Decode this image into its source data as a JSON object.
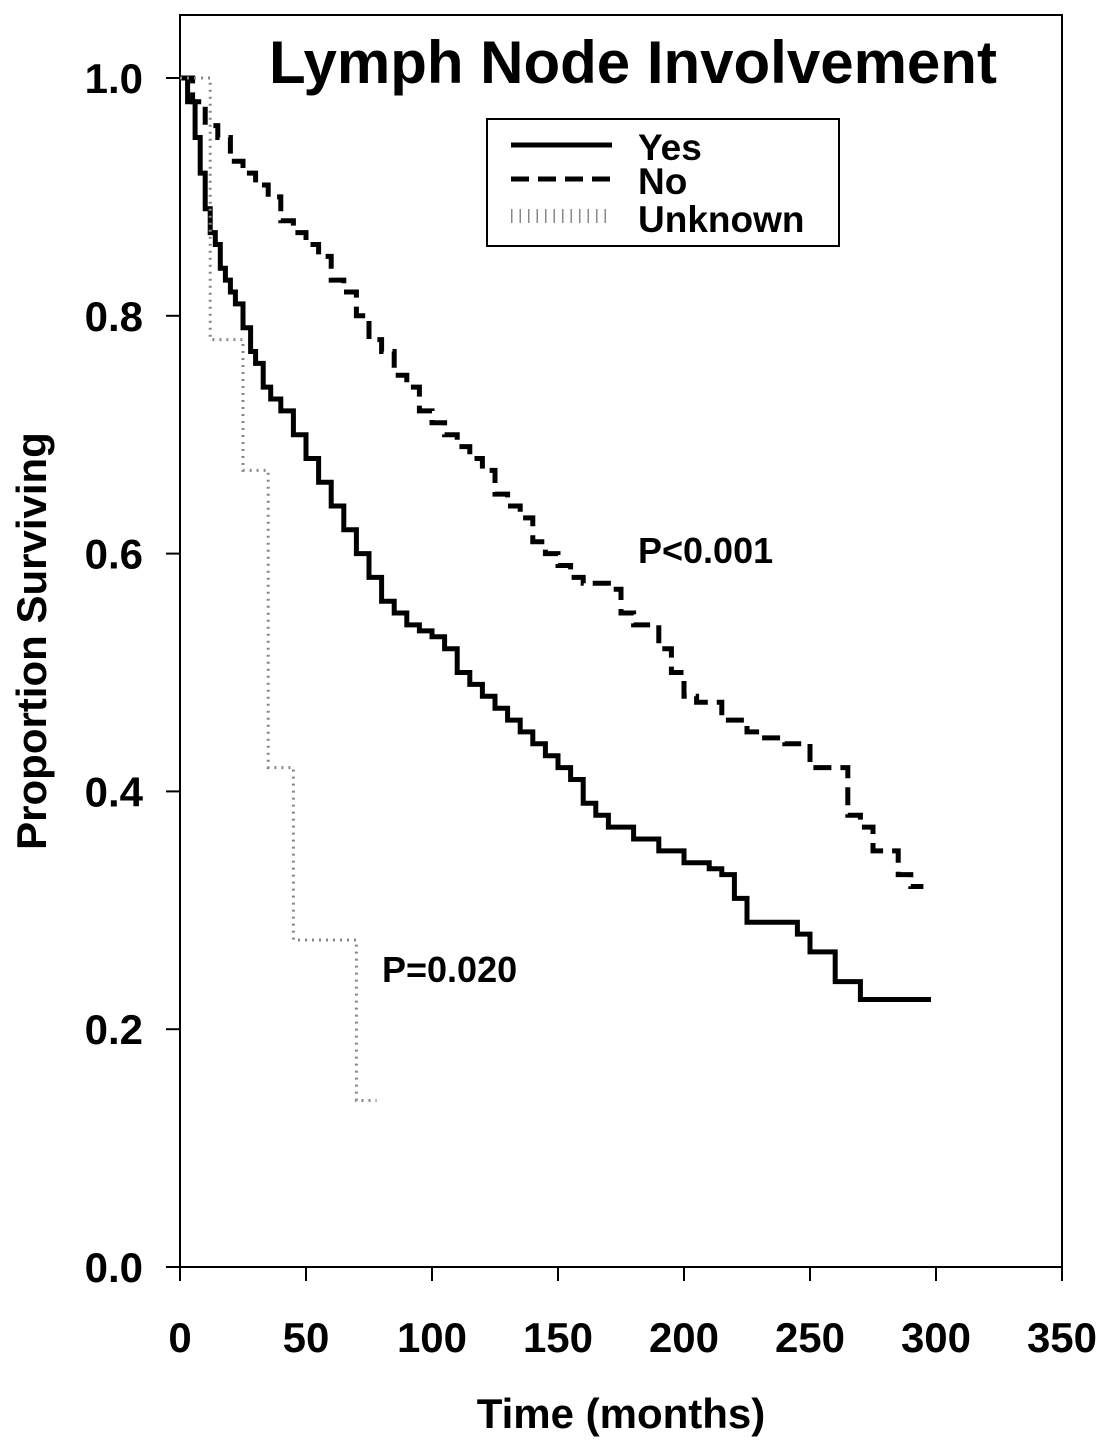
{
  "chart_data": {
    "type": "line",
    "subtype": "kaplan-meier step curve",
    "title": "Lymph Node Involvement",
    "xlabel": "Time (months)",
    "ylabel": "Proportion Surviving",
    "xlim": [
      0,
      350
    ],
    "ylim": [
      0.0,
      1.0
    ],
    "x_ticks": [
      "0",
      "50",
      "100",
      "150",
      "200",
      "250",
      "300",
      "350"
    ],
    "y_ticks": [
      "0.0",
      "0.2",
      "0.4",
      "0.6",
      "0.8",
      "1.0"
    ],
    "grid": false,
    "legend_position": "top-right",
    "legend": [
      "Yes",
      "No",
      "Unknown"
    ],
    "series": [
      {
        "name": "Yes",
        "line_style": "solid",
        "color": "#000000",
        "x": [
          0,
          3,
          6,
          8,
          10,
          12,
          14,
          16,
          18,
          20,
          22,
          25,
          28,
          30,
          33,
          36,
          40,
          45,
          50,
          55,
          60,
          65,
          70,
          75,
          80,
          85,
          90,
          95,
          100,
          105,
          110,
          115,
          120,
          125,
          130,
          135,
          140,
          145,
          150,
          155,
          160,
          165,
          170,
          175,
          180,
          185,
          190,
          195,
          200,
          205,
          210,
          215,
          220,
          225,
          230,
          235,
          240,
          245,
          250,
          255,
          260,
          265,
          270,
          275,
          280,
          285,
          290,
          298
        ],
        "y": [
          1.0,
          0.98,
          0.95,
          0.92,
          0.89,
          0.87,
          0.86,
          0.84,
          0.83,
          0.82,
          0.81,
          0.79,
          0.77,
          0.76,
          0.74,
          0.73,
          0.72,
          0.7,
          0.68,
          0.66,
          0.64,
          0.62,
          0.6,
          0.58,
          0.56,
          0.55,
          0.54,
          0.535,
          0.53,
          0.52,
          0.5,
          0.49,
          0.48,
          0.47,
          0.46,
          0.45,
          0.44,
          0.43,
          0.42,
          0.41,
          0.39,
          0.38,
          0.37,
          0.37,
          0.36,
          0.36,
          0.35,
          0.35,
          0.34,
          0.34,
          0.335,
          0.33,
          0.31,
          0.29,
          0.29,
          0.29,
          0.29,
          0.28,
          0.265,
          0.265,
          0.24,
          0.24,
          0.225,
          0.225,
          0.225,
          0.225,
          0.225,
          0.225
        ]
      },
      {
        "name": "No",
        "line_style": "dashed",
        "color": "#000000",
        "x": [
          0,
          5,
          10,
          15,
          20,
          25,
          30,
          35,
          40,
          45,
          50,
          55,
          60,
          65,
          70,
          75,
          80,
          85,
          90,
          95,
          100,
          105,
          110,
          115,
          120,
          125,
          130,
          135,
          140,
          145,
          150,
          155,
          160,
          165,
          170,
          175,
          180,
          185,
          190,
          195,
          200,
          205,
          210,
          215,
          220,
          225,
          230,
          235,
          240,
          245,
          250,
          255,
          260,
          265,
          270,
          275,
          280,
          285,
          290,
          295
        ],
        "y": [
          1.0,
          0.98,
          0.96,
          0.95,
          0.93,
          0.92,
          0.91,
          0.9,
          0.88,
          0.87,
          0.86,
          0.85,
          0.83,
          0.82,
          0.8,
          0.78,
          0.77,
          0.75,
          0.74,
          0.72,
          0.71,
          0.7,
          0.69,
          0.68,
          0.67,
          0.65,
          0.64,
          0.63,
          0.61,
          0.6,
          0.59,
          0.58,
          0.575,
          0.575,
          0.57,
          0.55,
          0.54,
          0.54,
          0.52,
          0.5,
          0.48,
          0.475,
          0.475,
          0.46,
          0.46,
          0.45,
          0.445,
          0.445,
          0.44,
          0.44,
          0.42,
          0.42,
          0.42,
          0.38,
          0.37,
          0.35,
          0.35,
          0.33,
          0.32,
          0.32
        ]
      },
      {
        "name": "Unknown",
        "line_style": "dotted",
        "color": "#888888",
        "x": [
          0,
          5,
          12,
          25,
          35,
          45,
          70,
          78
        ],
        "y": [
          1.0,
          1.0,
          0.78,
          0.67,
          0.42,
          0.275,
          0.14,
          0.14
        ]
      }
    ],
    "annotations": [
      "P<0.001",
      "P=0.020"
    ]
  }
}
